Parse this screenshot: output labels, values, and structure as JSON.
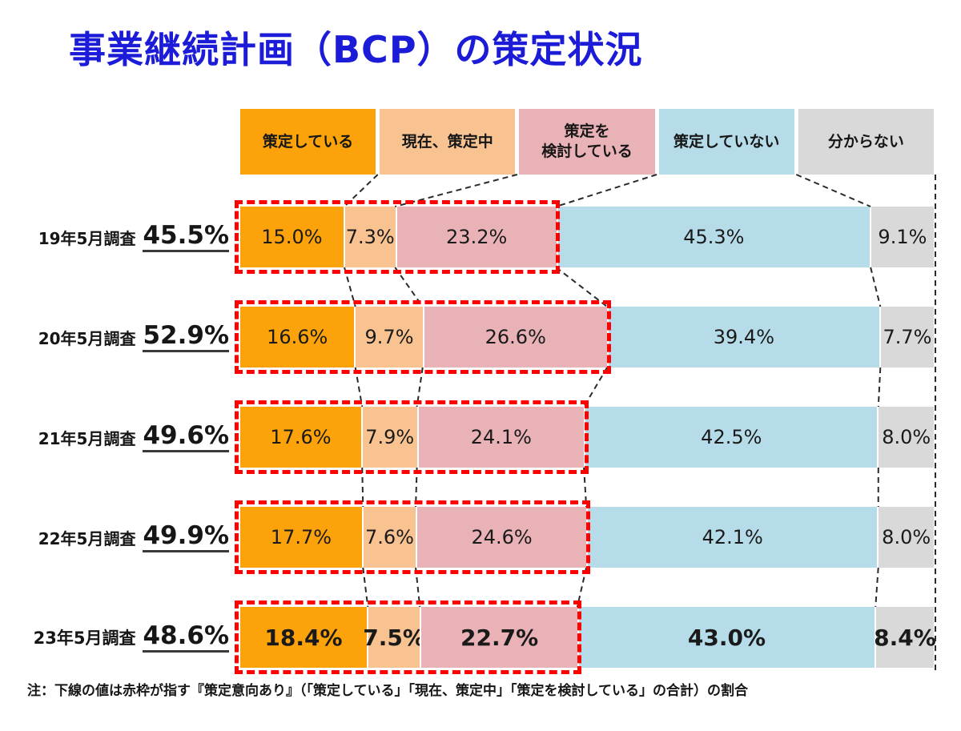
{
  "title": "事業継続計画（BCP）の策定状況",
  "footnote": "注：下線の値は赤枠が指す『策定意向あり』（「策定している」「現在、策定中」「策定を検討している」の合計）の割合",
  "colors": {
    "title_text": "#1b1bd8",
    "highlight_box": "#ff0000",
    "connector_line": "#2a2a2a",
    "label_text": "#161616"
  },
  "chart_data": {
    "type": "bar",
    "variant": "horizontal-stacked-percent",
    "legend_position": "top",
    "x_range": [
      0,
      100
    ],
    "unit": "%",
    "grid": false,
    "categories": [
      "19年5月調査",
      "20年5月調査",
      "21年5月調査",
      "22年5月調査",
      "23年5月調査"
    ],
    "totals_underlined": [
      45.5,
      52.9,
      49.6,
      49.9,
      48.6
    ],
    "emphasized_row_index": 4,
    "highlight_box_segments": [
      0,
      1,
      2
    ],
    "series": [
      {
        "name": "策定している",
        "legend_label": "策定している",
        "color": "#fca20a",
        "values": [
          15.0,
          16.6,
          17.6,
          17.7,
          18.4
        ]
      },
      {
        "name": "現在、策定中",
        "legend_label": "現在、策定中",
        "color": "#f8c391",
        "values": [
          7.3,
          9.7,
          7.9,
          7.6,
          7.5
        ]
      },
      {
        "name": "策定を検討している",
        "legend_label": "策定を\n検討している",
        "color": "#e9b2b7",
        "values": [
          23.2,
          26.6,
          24.1,
          24.6,
          22.7
        ]
      },
      {
        "name": "策定していない",
        "legend_label": "策定していない",
        "color": "#b6dce9",
        "values": [
          45.3,
          39.4,
          42.5,
          42.1,
          43.0
        ]
      },
      {
        "name": "分からない",
        "legend_label": "分からない",
        "color": "#d9d9d9",
        "values": [
          9.1,
          7.7,
          8.0,
          8.0,
          8.4
        ]
      }
    ]
  }
}
